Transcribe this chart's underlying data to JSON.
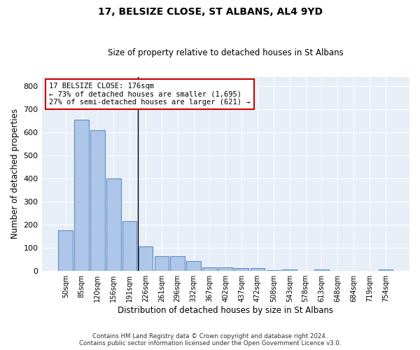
{
  "title": "17, BELSIZE CLOSE, ST ALBANS, AL4 9YD",
  "subtitle": "Size of property relative to detached houses in St Albans",
  "xlabel": "Distribution of detached houses by size in St Albans",
  "ylabel": "Number of detached properties",
  "categories": [
    "50sqm",
    "85sqm",
    "120sqm",
    "156sqm",
    "191sqm",
    "226sqm",
    "261sqm",
    "296sqm",
    "332sqm",
    "367sqm",
    "402sqm",
    "437sqm",
    "472sqm",
    "508sqm",
    "543sqm",
    "578sqm",
    "613sqm",
    "648sqm",
    "684sqm",
    "719sqm",
    "754sqm"
  ],
  "values": [
    175,
    655,
    608,
    400,
    215,
    107,
    63,
    63,
    44,
    17,
    16,
    14,
    12,
    5,
    8,
    0,
    7,
    0,
    0,
    0,
    6
  ],
  "bar_color": "#aec6e8",
  "bar_edge_color": "#5b8fc9",
  "vline_x": 4.5,
  "annotation_text_line1": "17 BELSIZE CLOSE: 176sqm",
  "annotation_text_line2": "← 73% of detached houses are smaller (1,695)",
  "annotation_text_line3": "27% of semi-detached houses are larger (621) →",
  "annotation_box_color": "#ffffff",
  "annotation_box_edge_color": "#cc0000",
  "ylim": [
    0,
    840
  ],
  "yticks": [
    0,
    100,
    200,
    300,
    400,
    500,
    600,
    700,
    800
  ],
  "bg_color": "#e8eef7",
  "grid_color": "#ffffff",
  "footer_line1": "Contains HM Land Registry data © Crown copyright and database right 2024.",
  "footer_line2": "Contains public sector information licensed under the Open Government Licence v3.0."
}
